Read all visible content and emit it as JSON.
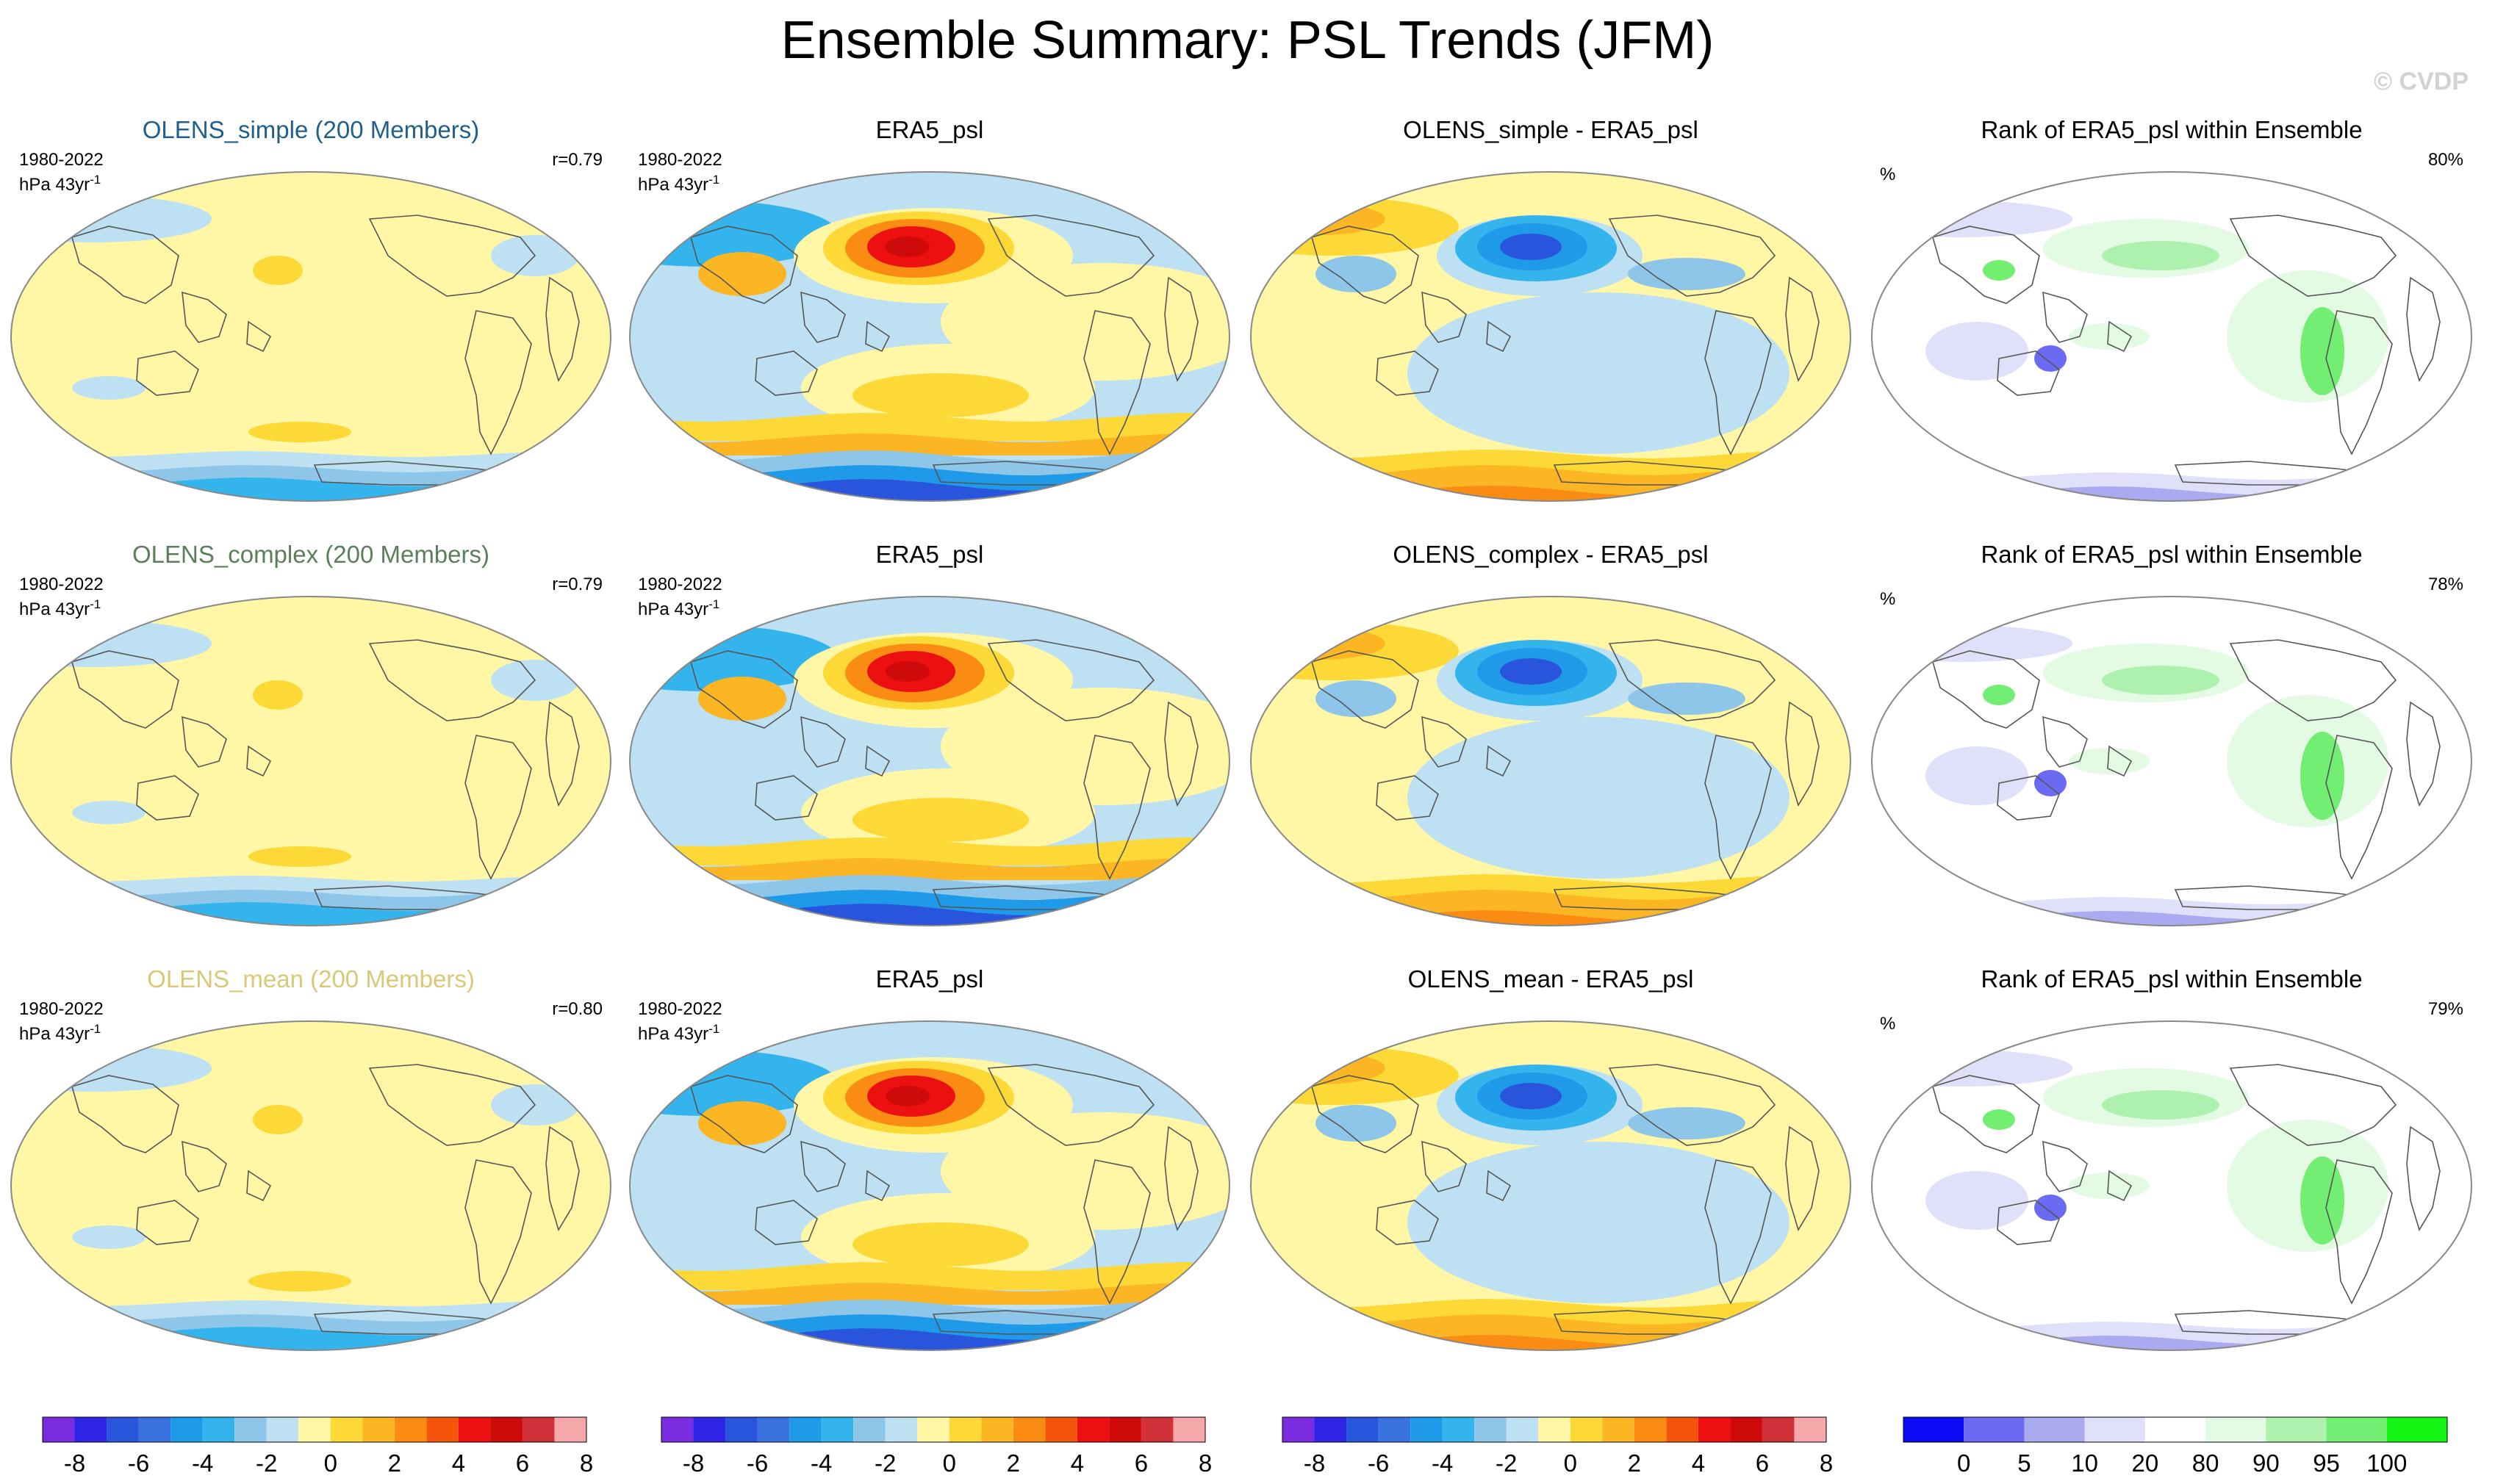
{
  "title": "Ensemble Summary: PSL Trends (JFM)",
  "watermark": "© CVDP",
  "period": "1980-2022",
  "units_base": "hPa 43yr",
  "units_exp": "-1",
  "pct_symbol": "%",
  "colors": {
    "model_title_simple": "#1f5f8a",
    "model_title_complex": "#5b7f5b",
    "model_title_mean": "#d8c978"
  },
  "rows": [
    {
      "model": {
        "title": "OLENS_simple (200 Members)",
        "r": "r=0.79"
      },
      "obs": {
        "title": "ERA5_psl"
      },
      "diff": {
        "title": "OLENS_simple - ERA5_psl"
      },
      "rank": {
        "title": "Rank of ERA5_psl within Ensemble",
        "pct": "80%"
      }
    },
    {
      "model": {
        "title": "OLENS_complex (200 Members)",
        "r": "r=0.79"
      },
      "obs": {
        "title": "ERA5_psl"
      },
      "diff": {
        "title": "OLENS_complex - ERA5_psl"
      },
      "rank": {
        "title": "Rank of ERA5_psl within Ensemble",
        "pct": "78%"
      }
    },
    {
      "model": {
        "title": "OLENS_mean (200 Members)",
        "r": "r=0.80"
      },
      "obs": {
        "title": "ERA5_psl"
      },
      "diff": {
        "title": "OLENS_mean - ERA5_psl"
      },
      "rank": {
        "title": "Rank of ERA5_psl within Ensemble",
        "pct": "79%"
      }
    }
  ],
  "chart_data": [
    {
      "type": "heatmap",
      "title": "Ensemble Summary: PSL Trends (JFM)",
      "layout_rows": 3,
      "layout_cols": 4,
      "variable": "PSL trend",
      "trend_colorbar": {
        "ticks": [
          "-8",
          "-6",
          "-4",
          "-2",
          "0",
          "2",
          "4",
          "6",
          "8"
        ],
        "colors": [
          "#7a2ce0",
          "#2f25e6",
          "#2855dc",
          "#3a72e0",
          "#1e9ae8",
          "#33b4ec",
          "#8ec6ea",
          "#bde0f2",
          "#fff7a6",
          "#fcd936",
          "#fcb523",
          "#fa8c14",
          "#f5550a",
          "#ed1010",
          "#cf0a0a",
          "#d1323a",
          "#f5a8aa"
        ]
      },
      "rank_colorbar": {
        "ticks": [
          "0",
          "5",
          "10",
          "20",
          "80",
          "90",
          "95",
          "100"
        ],
        "colors": [
          "#0b0bf5",
          "#6a6af2",
          "#aaaaf0",
          "#e0e0fa",
          "#ffffff",
          "#e3fbe3",
          "#aef0ae",
          "#72ee72",
          "#14f514"
        ]
      }
    }
  ]
}
